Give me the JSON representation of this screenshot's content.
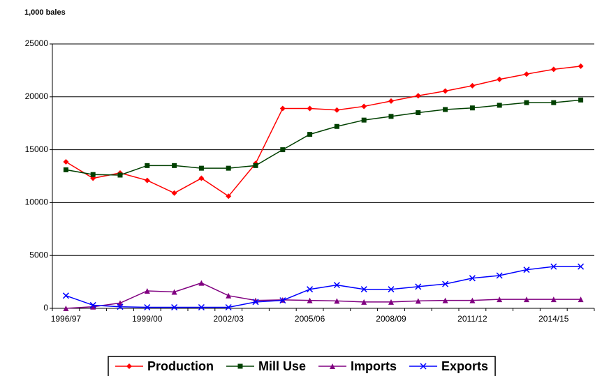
{
  "chart_data": {
    "type": "line",
    "y_label": "1,000 bales",
    "categories": [
      "1996/97",
      null,
      null,
      "1999/00",
      null,
      null,
      "2002/03",
      null,
      null,
      "2005/06",
      null,
      null,
      "2008/09",
      null,
      null,
      "2011/12",
      null,
      null,
      "2014/15",
      null
    ],
    "series": [
      {
        "name": "Production",
        "color": "#ff0000",
        "marker": "diamond",
        "values": [
          13850,
          12300,
          12800,
          12100,
          10900,
          12300,
          10600,
          13700,
          18900,
          18900,
          18750,
          19100,
          19600,
          20100,
          20550,
          21050,
          21650,
          22150,
          22600,
          22900
        ]
      },
      {
        "name": "Mill Use",
        "color": "#004000",
        "marker": "square",
        "values": [
          13100,
          12650,
          12600,
          13500,
          13500,
          13250,
          13250,
          13500,
          15000,
          16450,
          17200,
          17800,
          18150,
          18500,
          18800,
          18950,
          19200,
          19450,
          19450,
          19700
        ]
      },
      {
        "name": "Imports",
        "color": "#800080",
        "marker": "triangle",
        "values": [
          0,
          150,
          500,
          1650,
          1550,
          2400,
          1200,
          750,
          800,
          750,
          700,
          600,
          600,
          700,
          750,
          750,
          850,
          850,
          850,
          850
        ]
      },
      {
        "name": "Exports",
        "color": "#0000ff",
        "marker": "x",
        "values": [
          1200,
          300,
          150,
          100,
          100,
          100,
          100,
          600,
          750,
          1800,
          2200,
          1800,
          1800,
          2050,
          2300,
          2850,
          3100,
          3650,
          3950,
          3950
        ]
      }
    ],
    "ylim": [
      0,
      25000
    ],
    "yticks": [
      0,
      5000,
      10000,
      15000,
      20000,
      25000
    ],
    "grid": true,
    "legend": "bottom"
  }
}
